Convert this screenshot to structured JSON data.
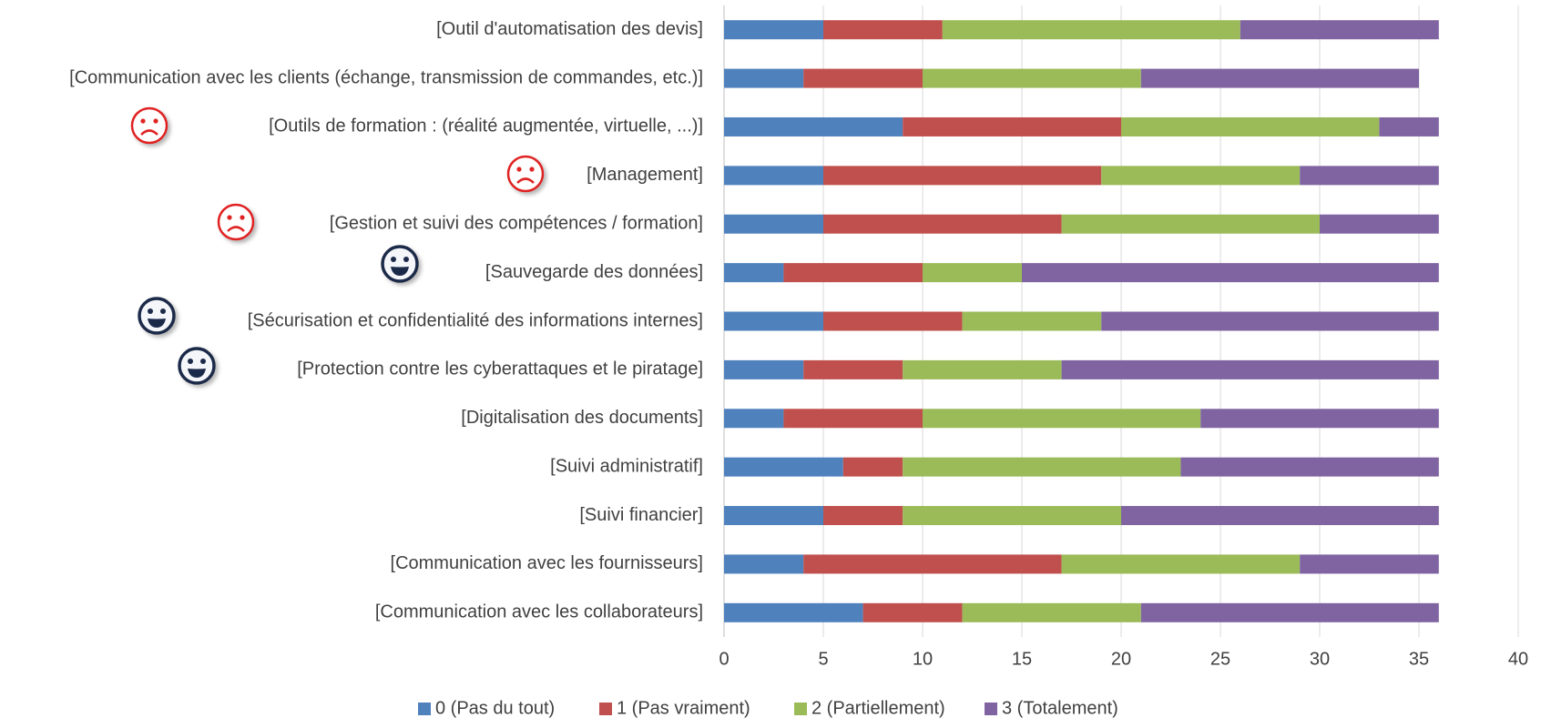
{
  "chart_data": {
    "type": "stacked_bar_horizontal",
    "categories": [
      "[Outil d'automatisation des devis]",
      "[Communication avec les clients (échange, transmission de commandes, etc.)]",
      "[Outils de formation : (réalité augmentée, virtuelle, ...)]",
      "[Management]",
      "[Gestion et suivi des compétences / formation]",
      "[Sauvegarde des données]",
      "[Sécurisation et confidentialité des informations internes]",
      "[Protection contre les cyberattaques et le piratage]",
      "[Digitalisation des documents]",
      "[Suivi administratif]",
      "[Suivi financier]",
      "[Communication avec les fournisseurs]",
      "[Communication avec les collaborateurs]"
    ],
    "series": [
      {
        "name": "0 (Pas du tout)",
        "color": "#4f81bd",
        "values": [
          5,
          4,
          9,
          5,
          5,
          3,
          5,
          4,
          3,
          6,
          5,
          4,
          7
        ]
      },
      {
        "name": "1 (Pas vraiment)",
        "color": "#c0504d",
        "values": [
          6,
          6,
          11,
          14,
          12,
          7,
          7,
          5,
          7,
          3,
          4,
          13,
          5
        ]
      },
      {
        "name": "2 (Partiellement)",
        "color": "#9bbb59",
        "values": [
          15,
          11,
          13,
          10,
          13,
          5,
          7,
          8,
          14,
          14,
          11,
          12,
          9
        ]
      },
      {
        "name": "3 (Totalement)",
        "color": "#8064a2",
        "values": [
          10,
          14,
          3,
          7,
          6,
          21,
          17,
          19,
          12,
          13,
          16,
          7,
          15
        ]
      }
    ],
    "xlim": [
      0,
      40
    ],
    "xticks": [
      0,
      5,
      10,
      15,
      20,
      25,
      30,
      35,
      40
    ],
    "grid": true,
    "legend": "bottom"
  }
}
